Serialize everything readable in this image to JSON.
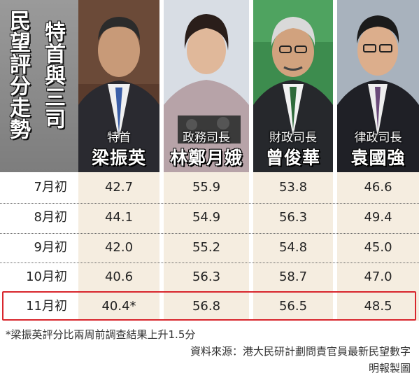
{
  "title": {
    "main": "民望評分走勢",
    "sub": "特首與三司"
  },
  "people": [
    {
      "role": "特首",
      "name": "梁振英"
    },
    {
      "role": "政務司長",
      "name": "林鄭月娥"
    },
    {
      "role": "財政司長",
      "name": "曾俊華"
    },
    {
      "role": "律政司長",
      "name": "袁國強"
    }
  ],
  "rows": [
    {
      "label": "7月初",
      "values": [
        "42.7",
        "55.9",
        "53.8",
        "46.6"
      ]
    },
    {
      "label": "8月初",
      "values": [
        "44.1",
        "54.9",
        "56.3",
        "49.4"
      ]
    },
    {
      "label": "9月初",
      "values": [
        "42.0",
        "55.2",
        "54.8",
        "45.0"
      ]
    },
    {
      "label": "10月初",
      "values": [
        "40.6",
        "56.3",
        "58.7",
        "47.0"
      ]
    },
    {
      "label": "11月初",
      "values": [
        "40.4*",
        "56.8",
        "56.5",
        "48.5"
      ]
    }
  ],
  "footnote": "*梁振英評分比兩周前調查結果上升1.5分",
  "source": "資料來源：港大民研計劃問責官員最新民望數字",
  "credit": "明報製圖",
  "colors": {
    "highlight_border": "#d8262d",
    "column_shade": "#f5ede0"
  }
}
